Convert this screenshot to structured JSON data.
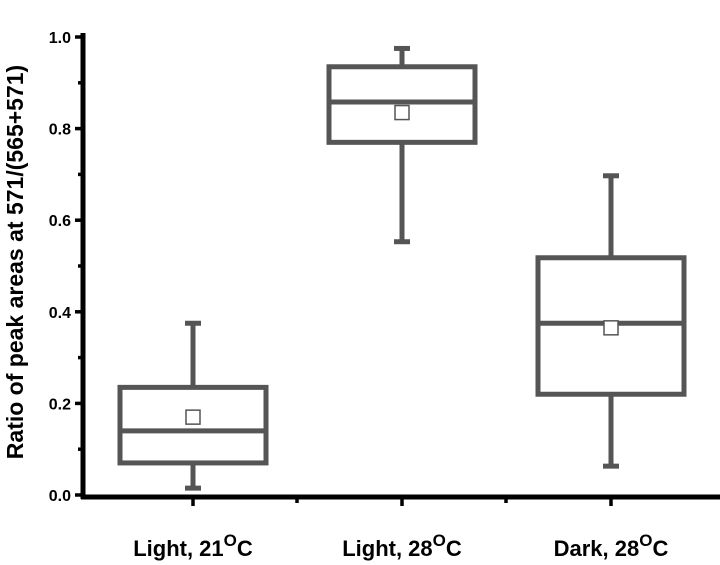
{
  "chart_data": {
    "type": "box",
    "ylabel": "Ratio of peak areas at 571/(565+571)",
    "ylim": [
      0,
      1.0
    ],
    "yticks": [
      "0.0",
      "0.2",
      "0.4",
      "0.6",
      "0.8",
      "1.0"
    ],
    "categories": [
      {
        "prefix": "Light, 21",
        "sup": "O",
        "suffix": "C"
      },
      {
        "prefix": "Light, 28",
        "sup": "O",
        "suffix": "C"
      },
      {
        "prefix": "Dark, 28",
        "sup": "O",
        "suffix": "C"
      }
    ],
    "boxes": [
      {
        "whisker_low": 0.015,
        "q1": 0.07,
        "median": 0.14,
        "q3": 0.235,
        "whisker_high": 0.375,
        "mean": 0.17
      },
      {
        "whisker_low": 0.553,
        "q1": 0.77,
        "median": 0.858,
        "q3": 0.935,
        "whisker_high": 0.975,
        "mean": 0.835
      },
      {
        "whisker_low": 0.063,
        "q1": 0.22,
        "median": 0.375,
        "q3": 0.518,
        "whisker_high": 0.697,
        "mean": 0.365
      }
    ],
    "colors": {
      "box": "#555555",
      "axis": "#000000",
      "mean_fill": "#ffffff"
    }
  }
}
